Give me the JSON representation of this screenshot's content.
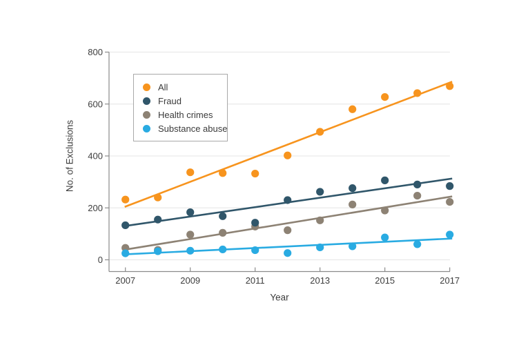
{
  "chart_data": {
    "type": "scatter",
    "title": "",
    "xlabel": "Year",
    "ylabel": "No. of Exclusions",
    "x": [
      2007,
      2008,
      2009,
      2010,
      2011,
      2012,
      2013,
      2014,
      2015,
      2016,
      2017
    ],
    "x_tick_labels": [
      "2007",
      "2009",
      "2011",
      "2013",
      "2015",
      "2017"
    ],
    "x_tick_years": [
      2007,
      2009,
      2011,
      2013,
      2015,
      2017
    ],
    "ylim": [
      0,
      800
    ],
    "y_ticks": [
      0,
      200,
      400,
      600,
      800
    ],
    "y_tick_labels": [
      "0",
      "200",
      "400",
      "600",
      "800"
    ],
    "grid": "horizontal",
    "legend_position": "upper-left-inside",
    "series": [
      {
        "name": "All",
        "color": "#F7941E",
        "values": [
          232,
          240,
          337,
          334,
          332,
          402,
          493,
          580,
          627,
          642,
          669
        ],
        "trend_line": {
          "y_at_2007": 204,
          "y_at_2017": 686
        }
      },
      {
        "name": "Fraud",
        "color": "#30566A",
        "values": [
          133,
          155,
          183,
          168,
          143,
          230,
          262,
          276,
          306,
          290,
          284
        ],
        "trend_line": {
          "y_at_2007": 130,
          "y_at_2017": 313
        }
      },
      {
        "name": "Health crimes",
        "color": "#8D8274",
        "values": [
          46,
          38,
          97,
          104,
          128,
          114,
          152,
          213,
          190,
          247,
          223
        ],
        "trend_line": {
          "y_at_2007": 39,
          "y_at_2017": 244
        }
      },
      {
        "name": "Substance abuse",
        "color": "#29ABE2",
        "values": [
          25,
          33,
          35,
          40,
          37,
          26,
          48,
          52,
          86,
          60,
          97
        ],
        "trend_line": {
          "y_at_2007": 21,
          "y_at_2017": 82
        }
      }
    ]
  },
  "colors": {
    "gridline": "#e9e9e9",
    "axis": "#8a8a8a",
    "tick_text": "#3d3d3d"
  }
}
